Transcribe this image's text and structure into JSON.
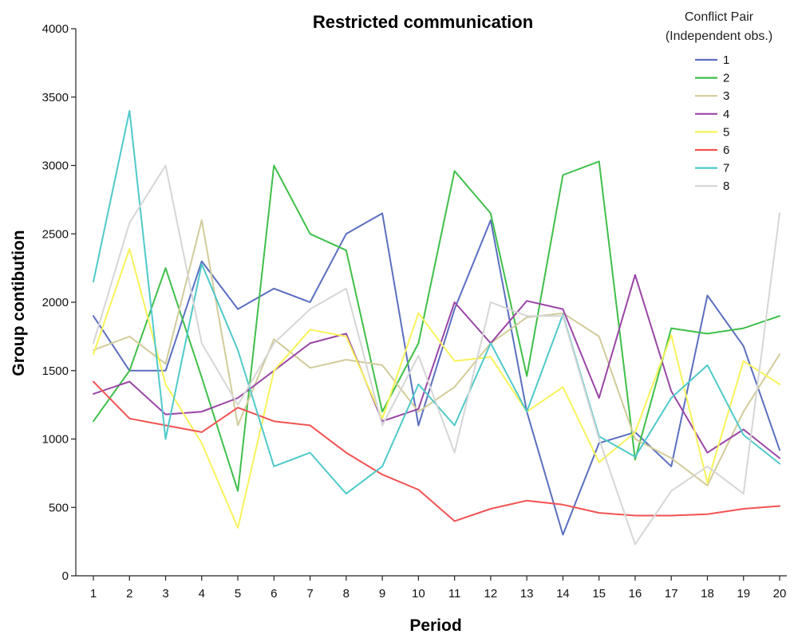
{
  "chart_data": {
    "type": "line",
    "title": "Restricted communication",
    "xlabel": "Period",
    "ylabel": "Group contibution",
    "categories": [
      "1",
      "2",
      "3",
      "4",
      "5",
      "6",
      "7",
      "8",
      "9",
      "10",
      "11",
      "12",
      "13",
      "14",
      "15",
      "16",
      "17",
      "18",
      "19",
      "20"
    ],
    "yticks": [
      "0",
      "500",
      "1000",
      "1500",
      "2000",
      "2500",
      "3000",
      "3500",
      "4000"
    ],
    "ylim": [
      0,
      4000
    ],
    "grid": false,
    "legend": {
      "title_line1": "Conflict Pair",
      "title_line2": "(Independent obs.)",
      "position": "top-right"
    },
    "series": [
      {
        "name": "1",
        "color": "#5b6fbf",
        "values": [
          1900,
          1500,
          1500,
          2300,
          1950,
          2100,
          2000,
          2500,
          2650,
          1100,
          1950,
          2600,
          1200,
          300,
          970,
          1050,
          800,
          2050,
          1680,
          920
        ]
      },
      {
        "name": "2",
        "color": "#3fbf4a",
        "values": [
          1130,
          1500,
          2250,
          1450,
          620,
          3000,
          2500,
          2380,
          1200,
          1700,
          2960,
          2650,
          1460,
          2930,
          3030,
          850,
          1810,
          1770,
          1810,
          1900
        ]
      },
      {
        "name": "3",
        "color": "#d2cb9a",
        "values": [
          1650,
          1750,
          1550,
          2600,
          1100,
          1730,
          1520,
          1580,
          1540,
          1200,
          1380,
          1700,
          1890,
          1920,
          1750,
          1000,
          860,
          660,
          1200,
          1620
        ]
      },
      {
        "name": "4",
        "color": "#9a46a6",
        "values": [
          1330,
          1420,
          1180,
          1200,
          1300,
          1500,
          1700,
          1770,
          1130,
          1220,
          2000,
          1700,
          2010,
          1950,
          1300,
          2200,
          1350,
          900,
          1070,
          860
        ]
      },
      {
        "name": "5",
        "color": "#f7f35a",
        "values": [
          1620,
          2390,
          1400,
          970,
          350,
          1500,
          1800,
          1750,
          1150,
          1920,
          1570,
          1600,
          1200,
          1380,
          830,
          1050,
          1760,
          680,
          1570,
          1400
        ]
      },
      {
        "name": "6",
        "color": "#f25252",
        "values": [
          1420,
          1150,
          1100,
          1050,
          1230,
          1130,
          1100,
          900,
          740,
          630,
          400,
          490,
          550,
          520,
          460,
          440,
          440,
          450,
          490,
          510
        ]
      },
      {
        "name": "7",
        "color": "#4fc9c9",
        "values": [
          2150,
          3400,
          1000,
          2280,
          1650,
          800,
          900,
          600,
          800,
          1400,
          1100,
          1700,
          1200,
          1910,
          1020,
          870,
          1300,
          1540,
          1030,
          820
        ]
      },
      {
        "name": "8",
        "color": "#d6d6d6",
        "values": [
          1700,
          2580,
          3000,
          1700,
          1250,
          1700,
          1950,
          2100,
          1100,
          1610,
          900,
          2000,
          1900,
          1900,
          1000,
          230,
          620,
          800,
          600,
          2650
        ]
      }
    ]
  }
}
